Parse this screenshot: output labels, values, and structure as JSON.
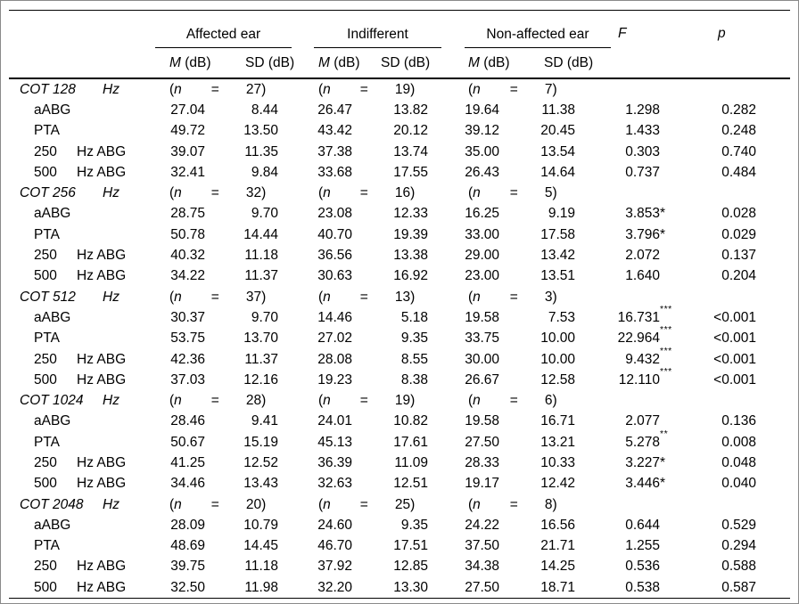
{
  "header": {
    "groups": [
      {
        "label": "Affected ear"
      },
      {
        "label": "Indifferent"
      },
      {
        "label": "Non-affected ear"
      }
    ],
    "stat_cols": [
      {
        "label": "F"
      },
      {
        "label": "p"
      }
    ],
    "sub": {
      "m_italic": "M",
      "m_rest": " (dB)",
      "sd": "SD (dB)"
    }
  },
  "n_row": {
    "open": "(",
    "symbol": "n",
    "eq": "=",
    "close": ")"
  },
  "sections": [
    {
      "freq_label": "COT 128",
      "unit": "Hz",
      "n": [
        "27",
        "19",
        "7"
      ],
      "rows": [
        {
          "label": "aABG",
          "label2": "",
          "m1": "27.04",
          "sd1": "8.44",
          "m2": "26.47",
          "sd2": "13.82",
          "m3": "19.64",
          "sd3": "11.38",
          "f": "1.298",
          "f_stars": "",
          "p": "0.282"
        },
        {
          "label": "PTA",
          "label2": "",
          "m1": "49.72",
          "sd1": "13.50",
          "m2": "43.42",
          "sd2": "20.12",
          "m3": "39.12",
          "sd3": "20.45",
          "f": "1.433",
          "f_stars": "",
          "p": "0.248"
        },
        {
          "label": "250",
          "label2": "Hz ABG",
          "m1": "39.07",
          "sd1": "11.35",
          "m2": "37.38",
          "sd2": "13.74",
          "m3": "35.00",
          "sd3": "13.54",
          "f": "0.303",
          "f_stars": "",
          "p": "0.740"
        },
        {
          "label": "500",
          "label2": "Hz ABG",
          "m1": "32.41",
          "sd1": "9.84",
          "m2": "33.68",
          "sd2": "17.55",
          "m3": "26.43",
          "sd3": "14.64",
          "f": "0.737",
          "f_stars": "",
          "p": "0.484"
        }
      ]
    },
    {
      "freq_label": "COT 256",
      "unit": "Hz",
      "n": [
        "32",
        "16",
        "5"
      ],
      "rows": [
        {
          "label": "aABG",
          "label2": "",
          "m1": "28.75",
          "sd1": "9.70",
          "m2": "23.08",
          "sd2": "12.33",
          "m3": "16.25",
          "sd3": "9.19",
          "f": "3.853",
          "f_stars": "*",
          "p": "0.028"
        },
        {
          "label": "PTA",
          "label2": "",
          "m1": "50.78",
          "sd1": "14.44",
          "m2": "40.70",
          "sd2": "19.39",
          "m3": "33.00",
          "sd3": "17.58",
          "f": "3.796",
          "f_stars": "*",
          "p": "0.029"
        },
        {
          "label": "250",
          "label2": "Hz ABG",
          "m1": "40.32",
          "sd1": "11.18",
          "m2": "36.56",
          "sd2": "13.38",
          "m3": "29.00",
          "sd3": "13.42",
          "f": "2.072",
          "f_stars": "",
          "p": "0.137"
        },
        {
          "label": "500",
          "label2": "Hz ABG",
          "m1": "34.22",
          "sd1": "11.37",
          "m2": "30.63",
          "sd2": "16.92",
          "m3": "23.00",
          "sd3": "13.51",
          "f": "1.640",
          "f_stars": "",
          "p": "0.204"
        }
      ]
    },
    {
      "freq_label": "COT 512",
      "unit": "Hz",
      "n": [
        "37",
        "13",
        "3"
      ],
      "rows": [
        {
          "label": "aABG",
          "label2": "",
          "m1": "30.37",
          "sd1": "9.70",
          "m2": "14.46",
          "sd2": "5.18",
          "m3": "19.58",
          "sd3": "7.53",
          "f": "16.731",
          "f_stars": "***",
          "p": "<0.001"
        },
        {
          "label": "PTA",
          "label2": "",
          "m1": "53.75",
          "sd1": "13.70",
          "m2": "27.02",
          "sd2": "9.35",
          "m3": "33.75",
          "sd3": "10.00",
          "f": "22.964",
          "f_stars": "***",
          "p": "<0.001"
        },
        {
          "label": "250",
          "label2": "Hz ABG",
          "m1": "42.36",
          "sd1": "11.37",
          "m2": "28.08",
          "sd2": "8.55",
          "m3": "30.00",
          "sd3": "10.00",
          "f": "9.432",
          "f_stars": "***",
          "p": "<0.001"
        },
        {
          "label": "500",
          "label2": "Hz ABG",
          "m1": "37.03",
          "sd1": "12.16",
          "m2": "19.23",
          "sd2": "8.38",
          "m3": "26.67",
          "sd3": "12.58",
          "f": "12.110",
          "f_stars": "***",
          "p": "<0.001"
        }
      ]
    },
    {
      "freq_label": "COT 1024",
      "unit": "Hz",
      "n": [
        "28",
        "19",
        "6"
      ],
      "rows": [
        {
          "label": "aABG",
          "label2": "",
          "m1": "28.46",
          "sd1": "9.41",
          "m2": "24.01",
          "sd2": "10.82",
          "m3": "19.58",
          "sd3": "16.71",
          "f": "2.077",
          "f_stars": "",
          "p": "0.136"
        },
        {
          "label": "PTA",
          "label2": "",
          "m1": "50.67",
          "sd1": "15.19",
          "m2": "45.13",
          "sd2": "17.61",
          "m3": "27.50",
          "sd3": "13.21",
          "f": "5.278",
          "f_stars": "**",
          "p": "0.008"
        },
        {
          "label": "250",
          "label2": "Hz ABG",
          "m1": "41.25",
          "sd1": "12.52",
          "m2": "36.39",
          "sd2": "11.09",
          "m3": "28.33",
          "sd3": "10.33",
          "f": "3.227",
          "f_stars": "*",
          "p": "0.048"
        },
        {
          "label": "500",
          "label2": "Hz ABG",
          "m1": "34.46",
          "sd1": "13.43",
          "m2": "32.63",
          "sd2": "12.51",
          "m3": "19.17",
          "sd3": "12.42",
          "f": "3.446",
          "f_stars": "*",
          "p": "0.040"
        }
      ]
    },
    {
      "freq_label": "COT 2048",
      "unit": "Hz",
      "n": [
        "20",
        "25",
        "8"
      ],
      "rows": [
        {
          "label": "aABG",
          "label2": "",
          "m1": "28.09",
          "sd1": "10.79",
          "m2": "24.60",
          "sd2": "9.35",
          "m3": "24.22",
          "sd3": "16.56",
          "f": "0.644",
          "f_stars": "",
          "p": "0.529"
        },
        {
          "label": "PTA",
          "label2": "",
          "m1": "48.69",
          "sd1": "14.45",
          "m2": "46.70",
          "sd2": "17.51",
          "m3": "37.50",
          "sd3": "21.71",
          "f": "1.255",
          "f_stars": "",
          "p": "0.294"
        },
        {
          "label": "250",
          "label2": "Hz ABG",
          "m1": "39.75",
          "sd1": "11.18",
          "m2": "37.92",
          "sd2": "12.85",
          "m3": "34.38",
          "sd3": "14.25",
          "f": "0.536",
          "f_stars": "",
          "p": "0.588"
        },
        {
          "label": "500",
          "label2": "Hz ABG",
          "m1": "32.50",
          "sd1": "11.98",
          "m2": "32.20",
          "sd2": "13.30",
          "m3": "27.50",
          "sd3": "18.71",
          "f": "0.538",
          "f_stars": "",
          "p": "0.587"
        }
      ]
    }
  ]
}
